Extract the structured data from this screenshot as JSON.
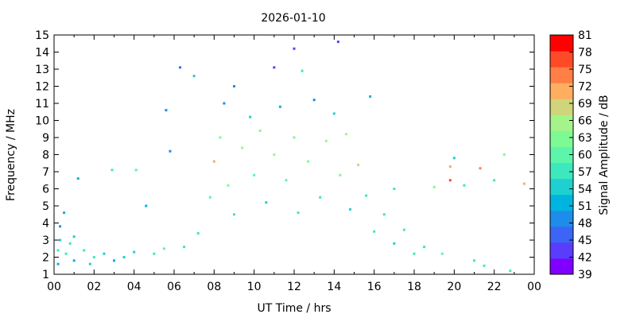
{
  "chart_data": {
    "type": "scatter",
    "title": "2026-01-10",
    "xlabel": "UT Time / hrs",
    "ylabel": "Frequency / MHz",
    "xlim": [
      0,
      24
    ],
    "ylim": [
      1,
      15
    ],
    "x_ticks": [
      "00",
      "02",
      "04",
      "06",
      "08",
      "10",
      "12",
      "14",
      "16",
      "18",
      "20",
      "22",
      "00"
    ],
    "y_ticks": [
      "1",
      "2",
      "3",
      "4",
      "5",
      "6",
      "7",
      "8",
      "9",
      "10",
      "11",
      "12",
      "13",
      "14",
      "15"
    ],
    "grid": false,
    "colorbar": {
      "label": "Signal Amplitude / dB",
      "min": 39,
      "max": 81,
      "tick_labels": [
        "39",
        "42",
        "45",
        "48",
        "51",
        "54",
        "57",
        "60",
        "63",
        "66",
        "69",
        "72",
        "75",
        "78",
        "81"
      ],
      "colors": [
        "#7f00ff",
        "#5a3cfc",
        "#3c64f5",
        "#1e8cea",
        "#00b4e0",
        "#1ed0d0",
        "#3de8bd",
        "#5cf5ab",
        "#7efa95",
        "#a3f48a",
        "#d0d47a",
        "#ffad5f",
        "#ff7f46",
        "#ff4a28",
        "#ff0000"
      ]
    },
    "series": [
      {
        "points": [
          [
            0.2,
            1.6,
            52
          ],
          [
            0.2,
            2.4,
            56
          ],
          [
            0.3,
            3.0,
            54
          ],
          [
            0.3,
            3.8,
            50
          ],
          [
            0.5,
            4.6,
            52
          ],
          [
            0.6,
            2.2,
            58
          ],
          [
            0.8,
            2.8,
            56
          ],
          [
            1.0,
            1.8,
            52
          ],
          [
            1.0,
            3.2,
            54
          ],
          [
            1.2,
            6.6,
            52
          ],
          [
            1.5,
            2.4,
            58
          ],
          [
            1.8,
            1.6,
            54
          ],
          [
            2.0,
            2.0,
            56
          ],
          [
            2.5,
            2.2,
            54
          ],
          [
            2.9,
            7.1,
            57
          ],
          [
            3.0,
            1.8,
            52
          ],
          [
            3.5,
            2.0,
            54
          ],
          [
            4.0,
            2.3,
            55
          ],
          [
            4.1,
            7.1,
            60
          ],
          [
            4.6,
            5.0,
            52
          ],
          [
            5.0,
            2.2,
            58
          ],
          [
            5.5,
            2.5,
            60
          ],
          [
            5.6,
            10.6,
            50
          ],
          [
            5.8,
            8.2,
            48
          ],
          [
            6.3,
            13.1,
            45
          ],
          [
            6.5,
            2.6,
            56
          ],
          [
            7.0,
            12.6,
            54
          ],
          [
            7.2,
            3.4,
            58
          ],
          [
            7.8,
            5.5,
            60
          ],
          [
            8.0,
            7.6,
            72
          ],
          [
            8.3,
            9.0,
            62
          ],
          [
            8.5,
            11.0,
            50
          ],
          [
            8.7,
            6.2,
            64
          ],
          [
            9.0,
            12.0,
            48
          ],
          [
            9.0,
            4.5,
            56
          ],
          [
            9.4,
            8.4,
            66
          ],
          [
            9.8,
            10.2,
            54
          ],
          [
            10.0,
            6.8,
            60
          ],
          [
            10.3,
            9.4,
            62
          ],
          [
            10.6,
            5.2,
            54
          ],
          [
            11.0,
            13.1,
            42
          ],
          [
            11.0,
            8.0,
            66
          ],
          [
            11.3,
            10.8,
            52
          ],
          [
            11.6,
            6.5,
            60
          ],
          [
            12.0,
            14.2,
            44
          ],
          [
            12.0,
            9.0,
            64
          ],
          [
            12.2,
            4.6,
            56
          ],
          [
            12.4,
            12.9,
            56
          ],
          [
            12.7,
            7.6,
            62
          ],
          [
            13.0,
            11.2,
            50
          ],
          [
            13.3,
            5.5,
            58
          ],
          [
            13.6,
            8.8,
            66
          ],
          [
            14.0,
            10.4,
            54
          ],
          [
            14.2,
            14.6,
            42
          ],
          [
            14.3,
            6.8,
            62
          ],
          [
            14.6,
            9.2,
            66
          ],
          [
            14.8,
            4.8,
            54
          ],
          [
            15.2,
            7.4,
            68
          ],
          [
            15.6,
            5.6,
            58
          ],
          [
            15.8,
            11.4,
            52
          ],
          [
            16.0,
            3.5,
            56
          ],
          [
            16.5,
            4.5,
            58
          ],
          [
            17.0,
            2.8,
            54
          ],
          [
            17.0,
            6.0,
            56
          ],
          [
            17.5,
            3.6,
            56
          ],
          [
            18.0,
            2.2,
            58
          ],
          [
            18.5,
            2.6,
            56
          ],
          [
            19.0,
            6.1,
            62
          ],
          [
            19.4,
            2.2,
            60
          ],
          [
            19.8,
            6.5,
            78
          ],
          [
            19.8,
            7.3,
            72
          ],
          [
            20.0,
            7.8,
            54
          ],
          [
            20.5,
            6.2,
            58
          ],
          [
            21.0,
            1.8,
            56
          ],
          [
            21.3,
            7.2,
            74
          ],
          [
            21.5,
            1.5,
            58
          ],
          [
            22.0,
            6.5,
            56
          ],
          [
            22.5,
            8.0,
            62
          ],
          [
            22.8,
            1.2,
            58
          ],
          [
            23.5,
            6.3,
            72
          ]
        ]
      }
    ]
  }
}
